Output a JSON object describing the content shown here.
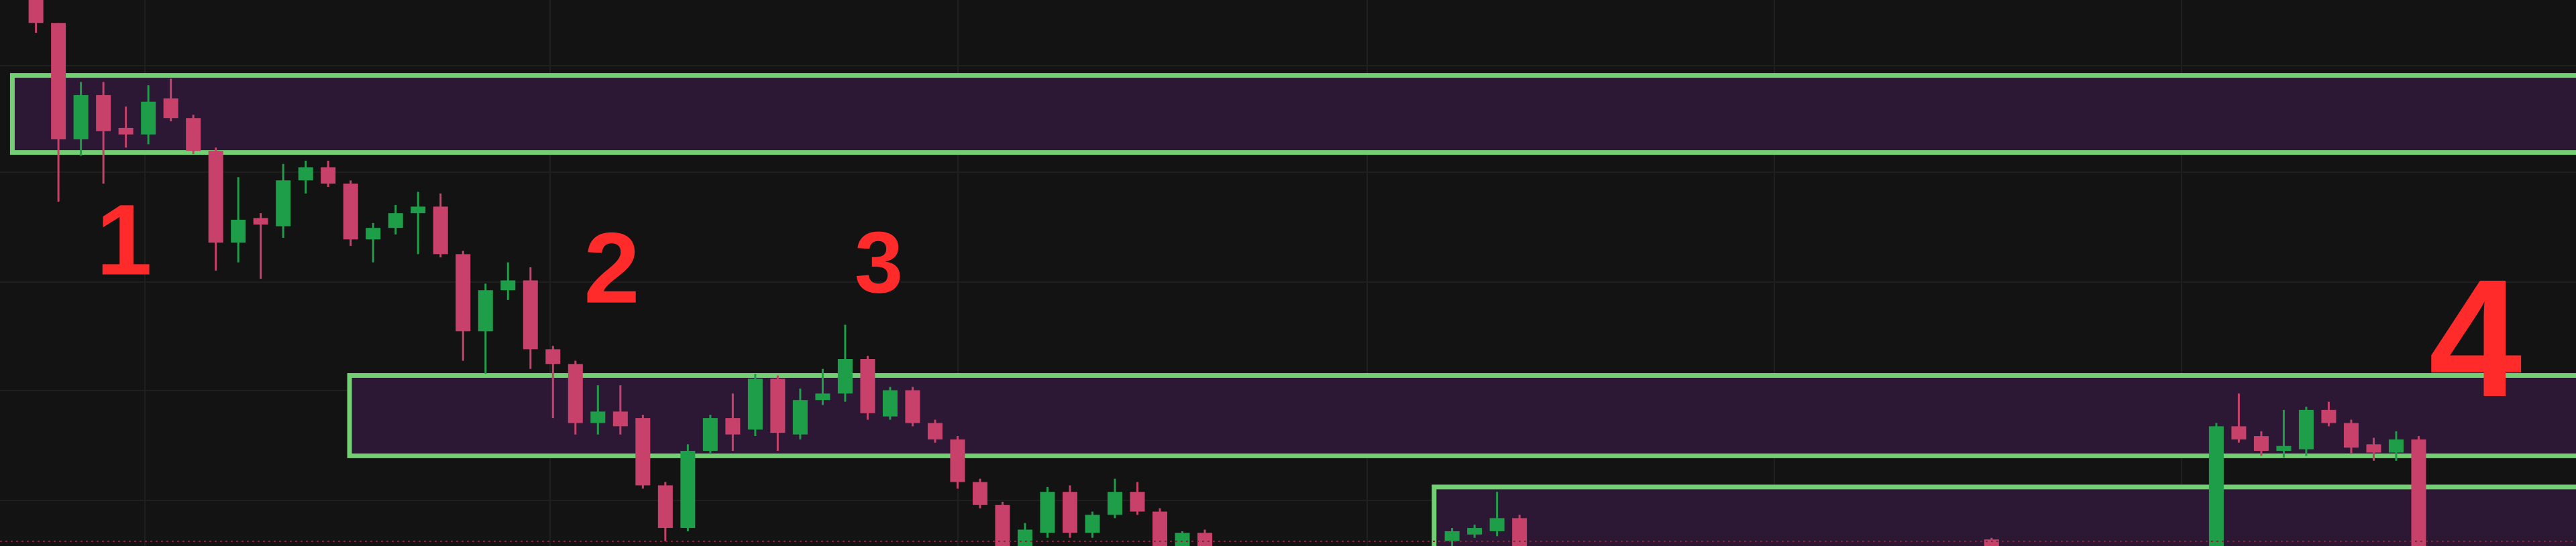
{
  "chart_data": {
    "type": "candlestick",
    "annotations": [
      "1",
      "2",
      "3",
      "4"
    ],
    "annotation_color": "#ff2b2b",
    "up_color": "#1f9e4a",
    "down_color": "#c8416a",
    "zone_fill": "#2c1734",
    "zone_stroke": "#72d072",
    "xlim": [
      -1.6,
      113
    ],
    "ylim": [
      0,
      333
    ],
    "candles": {
      "x": [
        0,
        1,
        2,
        3,
        4,
        5,
        6,
        7,
        8,
        9,
        10,
        11,
        12,
        13,
        14,
        15,
        16,
        17,
        18,
        19,
        20,
        21,
        22,
        23,
        24,
        25,
        26,
        27,
        28,
        29,
        30,
        31,
        32,
        33,
        34,
        35,
        36,
        37,
        38,
        39,
        40,
        41,
        42,
        43,
        44,
        45,
        46,
        47,
        48,
        49,
        50,
        51,
        52,
        63,
        64,
        65,
        66,
        87,
        97,
        98,
        99,
        100,
        101,
        102,
        103,
        104,
        105,
        106
      ],
      "open": [
        333,
        319,
        248,
        275,
        255,
        251,
        273,
        261,
        241,
        185,
        200,
        195,
        223,
        231,
        221,
        187,
        194,
        203,
        207,
        178,
        131,
        156,
        162,
        120,
        111,
        75,
        82,
        78,
        37,
        11,
        58,
        78,
        71,
        102,
        68,
        89,
        93,
        114,
        79,
        95,
        75,
        65,
        39,
        25,
        0,
        8,
        33,
        8,
        19,
        33,
        21,
        0,
        8,
        3,
        7,
        9,
        17,
        4,
        0,
        73,
        67,
        58,
        59,
        83,
        75,
        62,
        57,
        65
      ],
      "close": [
        319,
        248,
        275,
        253,
        251,
        271,
        261,
        241,
        185,
        199,
        196,
        223,
        231,
        221,
        187,
        194,
        203,
        207,
        178,
        131,
        156,
        162,
        120,
        111,
        75,
        82,
        73,
        37,
        11,
        58,
        78,
        68,
        102,
        69,
        89,
        93,
        114,
        81,
        95,
        75,
        65,
        39,
        25,
        0,
        10,
        33,
        8,
        19,
        33,
        21,
        0,
        8,
        0,
        9,
        11,
        17,
        0,
        0,
        73,
        65,
        58,
        61,
        83,
        75,
        60,
        57,
        65,
        0
      ],
      "high": [
        333,
        319,
        283,
        283,
        268,
        281,
        285,
        263,
        243,
        225,
        203,
        233,
        235,
        235,
        223,
        197,
        208,
        216,
        215,
        180,
        160,
        173,
        170,
        122,
        113,
        98,
        98,
        80,
        39,
        62,
        80,
        93,
        105,
        104,
        96,
        108,
        135,
        116,
        97,
        97,
        77,
        67,
        41,
        27,
        14,
        36,
        37,
        21,
        41,
        39,
        23,
        9,
        10,
        11,
        13,
        33,
        19,
        5,
        75,
        93,
        70,
        83,
        85,
        88,
        77,
        66,
        70,
        67
      ],
      "low": [
        313,
        210,
        238,
        221,
        243,
        245,
        259,
        239,
        168,
        173,
        163,
        188,
        215,
        219,
        183,
        173,
        190,
        178,
        176,
        113,
        105,
        150,
        108,
        78,
        68,
        68,
        68,
        35,
        3,
        9,
        56,
        58,
        67,
        58,
        65,
        86,
        88,
        77,
        77,
        73,
        63,
        35,
        23,
        0,
        0,
        5,
        5,
        5,
        17,
        19,
        0,
        0,
        0,
        0,
        5,
        6,
        0,
        0,
        0,
        63,
        55,
        54,
        55,
        73,
        56,
        52,
        52,
        0
      ]
    },
    "zones": [
      {
        "from": -1.05,
        "low": 240,
        "high": 287
      },
      {
        "from": 13.95,
        "low": 55,
        "high": 104
      },
      {
        "from": 62.2,
        "low": -5,
        "high": 36
      }
    ]
  }
}
